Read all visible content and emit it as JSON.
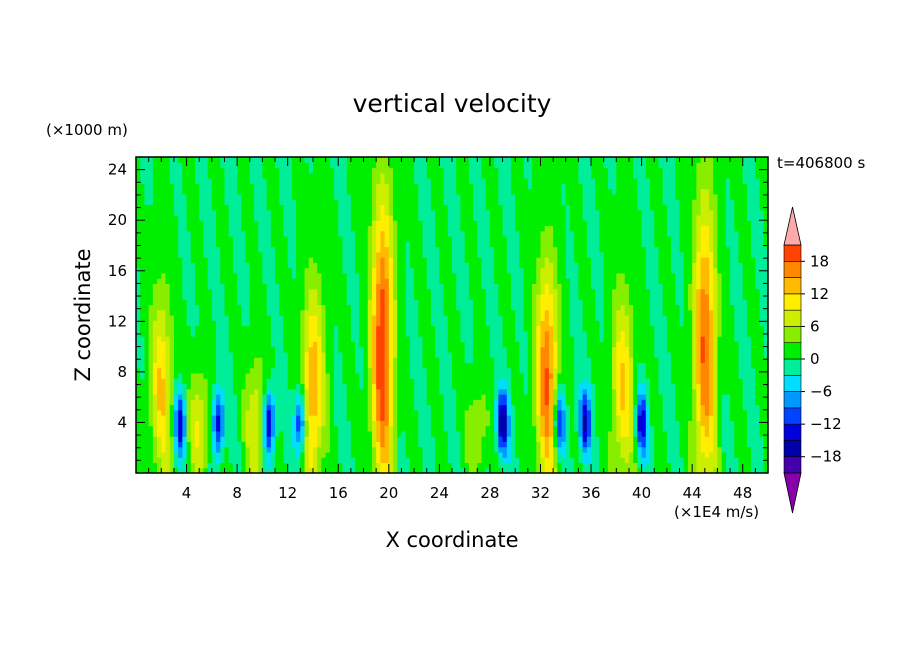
{
  "chart_data": {
    "type": "heatmap",
    "title": "vertical velocity",
    "xlabel": "X coordinate",
    "ylabel": "Z coordinate",
    "x_unit": "(×1E4 m/s)",
    "y_unit": "(×1000 m)",
    "time_label": "t=406800 s",
    "xlim": [
      0,
      50
    ],
    "ylim": [
      0,
      25
    ],
    "x_ticks": [
      4,
      8,
      12,
      16,
      20,
      24,
      28,
      32,
      36,
      40,
      44,
      48
    ],
    "y_ticks": [
      4,
      8,
      12,
      16,
      20,
      24
    ],
    "colorbar": {
      "levels": [
        -21,
        -18,
        -15,
        -12,
        -9,
        -6,
        -3,
        0,
        3,
        6,
        9,
        12,
        15,
        18,
        21
      ],
      "tick_values": [
        -18,
        -12,
        -6,
        0,
        6,
        12,
        18
      ],
      "tick_labels": [
        "−18",
        "−12",
        "−6",
        "0",
        "6",
        "12",
        "18"
      ],
      "colors": [
        "#8800aa",
        "#4400aa",
        "#0000aa",
        "#0000dd",
        "#0044ff",
        "#0099ff",
        "#00ddff",
        "#00ee99",
        "#00ee00",
        "#88ee00",
        "#ccee00",
        "#ffee00",
        "#ffbb00",
        "#ff8800",
        "#ff4400",
        "#ee0000",
        "#ffaaaa"
      ],
      "extend": "both"
    },
    "updraft_cores": [
      {
        "x": 2,
        "z_top": 16,
        "max": 12
      },
      {
        "x": 5,
        "z_top": 9,
        "max": 9
      },
      {
        "x": 9.5,
        "z_top": 10,
        "max": 9
      },
      {
        "x": 14,
        "z_top": 16,
        "max": 15
      },
      {
        "x": 19.5,
        "z_top": 24,
        "max": 21
      },
      {
        "x": 27,
        "z_top": 8,
        "max": 6
      },
      {
        "x": 32.5,
        "z_top": 18,
        "max": 18
      },
      {
        "x": 38.5,
        "z_top": 16,
        "max": 12
      },
      {
        "x": 45,
        "z_top": 24,
        "max": 18
      }
    ],
    "downdraft_cores": [
      {
        "x": 3.5,
        "min": -15
      },
      {
        "x": 6.5,
        "min": -15
      },
      {
        "x": 10.5,
        "min": -18
      },
      {
        "x": 13,
        "min": -15
      },
      {
        "x": 29,
        "min": -18
      },
      {
        "x": 33.5,
        "min": -15
      },
      {
        "x": 35.5,
        "min": -15
      },
      {
        "x": 40,
        "min": -15
      }
    ]
  }
}
